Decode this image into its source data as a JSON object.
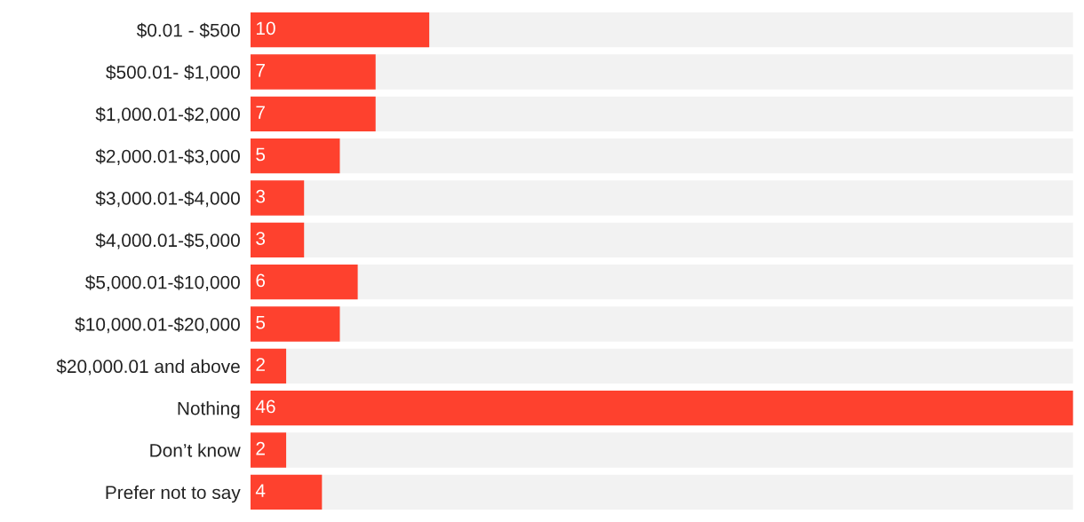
{
  "chart_data": {
    "type": "bar",
    "orientation": "horizontal",
    "categories": [
      "$0.01 - $500",
      "$500.01- $1,000",
      "$1,000.01-$2,000",
      "$2,000.01-$3,000",
      "$3,000.01-$4,000",
      "$4,000.01-$5,000",
      "$5,000.01-$10,000",
      "$10,000.01-$20,000",
      "$20,000.01 and above",
      "Nothing",
      "Don’t know",
      "Prefer not to say"
    ],
    "values": [
      10,
      7,
      7,
      5,
      3,
      3,
      6,
      5,
      2,
      46,
      2,
      4
    ],
    "color": "#fe412e",
    "data_labels": true,
    "grid": false,
    "legend": false,
    "tick_labels": "y"
  }
}
